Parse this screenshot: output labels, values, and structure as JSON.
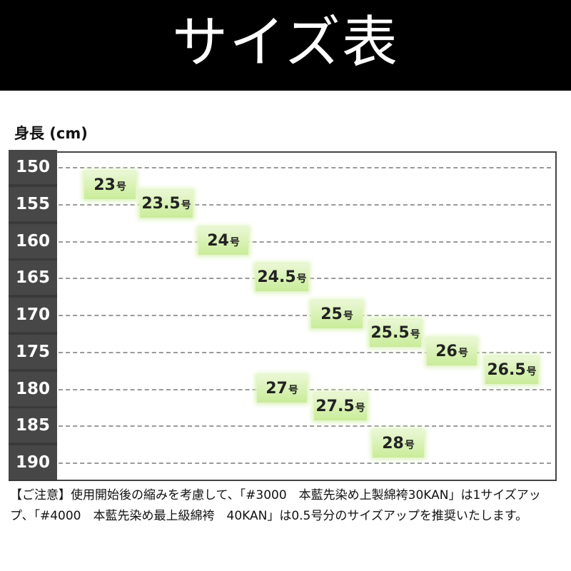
{
  "header": {
    "title": "サイズ表"
  },
  "chart_data": {
    "type": "table",
    "ylabel": "身長 (cm)",
    "y_ticks": [
      "150",
      "155",
      "160",
      "165",
      "170",
      "175",
      "180",
      "185",
      "190"
    ],
    "size_unit": "号",
    "sizes": [
      {
        "label": "23",
        "height_cm": 152.5
      },
      {
        "label": "23.5",
        "height_cm": 155
      },
      {
        "label": "24",
        "height_cm": 160
      },
      {
        "label": "24.5",
        "height_cm": 165
      },
      {
        "label": "25",
        "height_cm": 170
      },
      {
        "label": "25.5",
        "height_cm": 172.5
      },
      {
        "label": "26",
        "height_cm": 175
      },
      {
        "label": "26.5",
        "height_cm": 177.5
      },
      {
        "label": "27",
        "height_cm": 180
      },
      {
        "label": "27.5",
        "height_cm": 182.5
      },
      {
        "label": "28",
        "height_cm": 187.5
      }
    ]
  },
  "note": {
    "text": "【ご注意】使用開始後の縮みを考慮して、「#3000　本藍先染め上製綿袴30KAN」は1サイズアップ、「#4000　本藍先染め最上級綿袴　40KAN」は0.5号分のサイズアップを推奨いたします。"
  }
}
